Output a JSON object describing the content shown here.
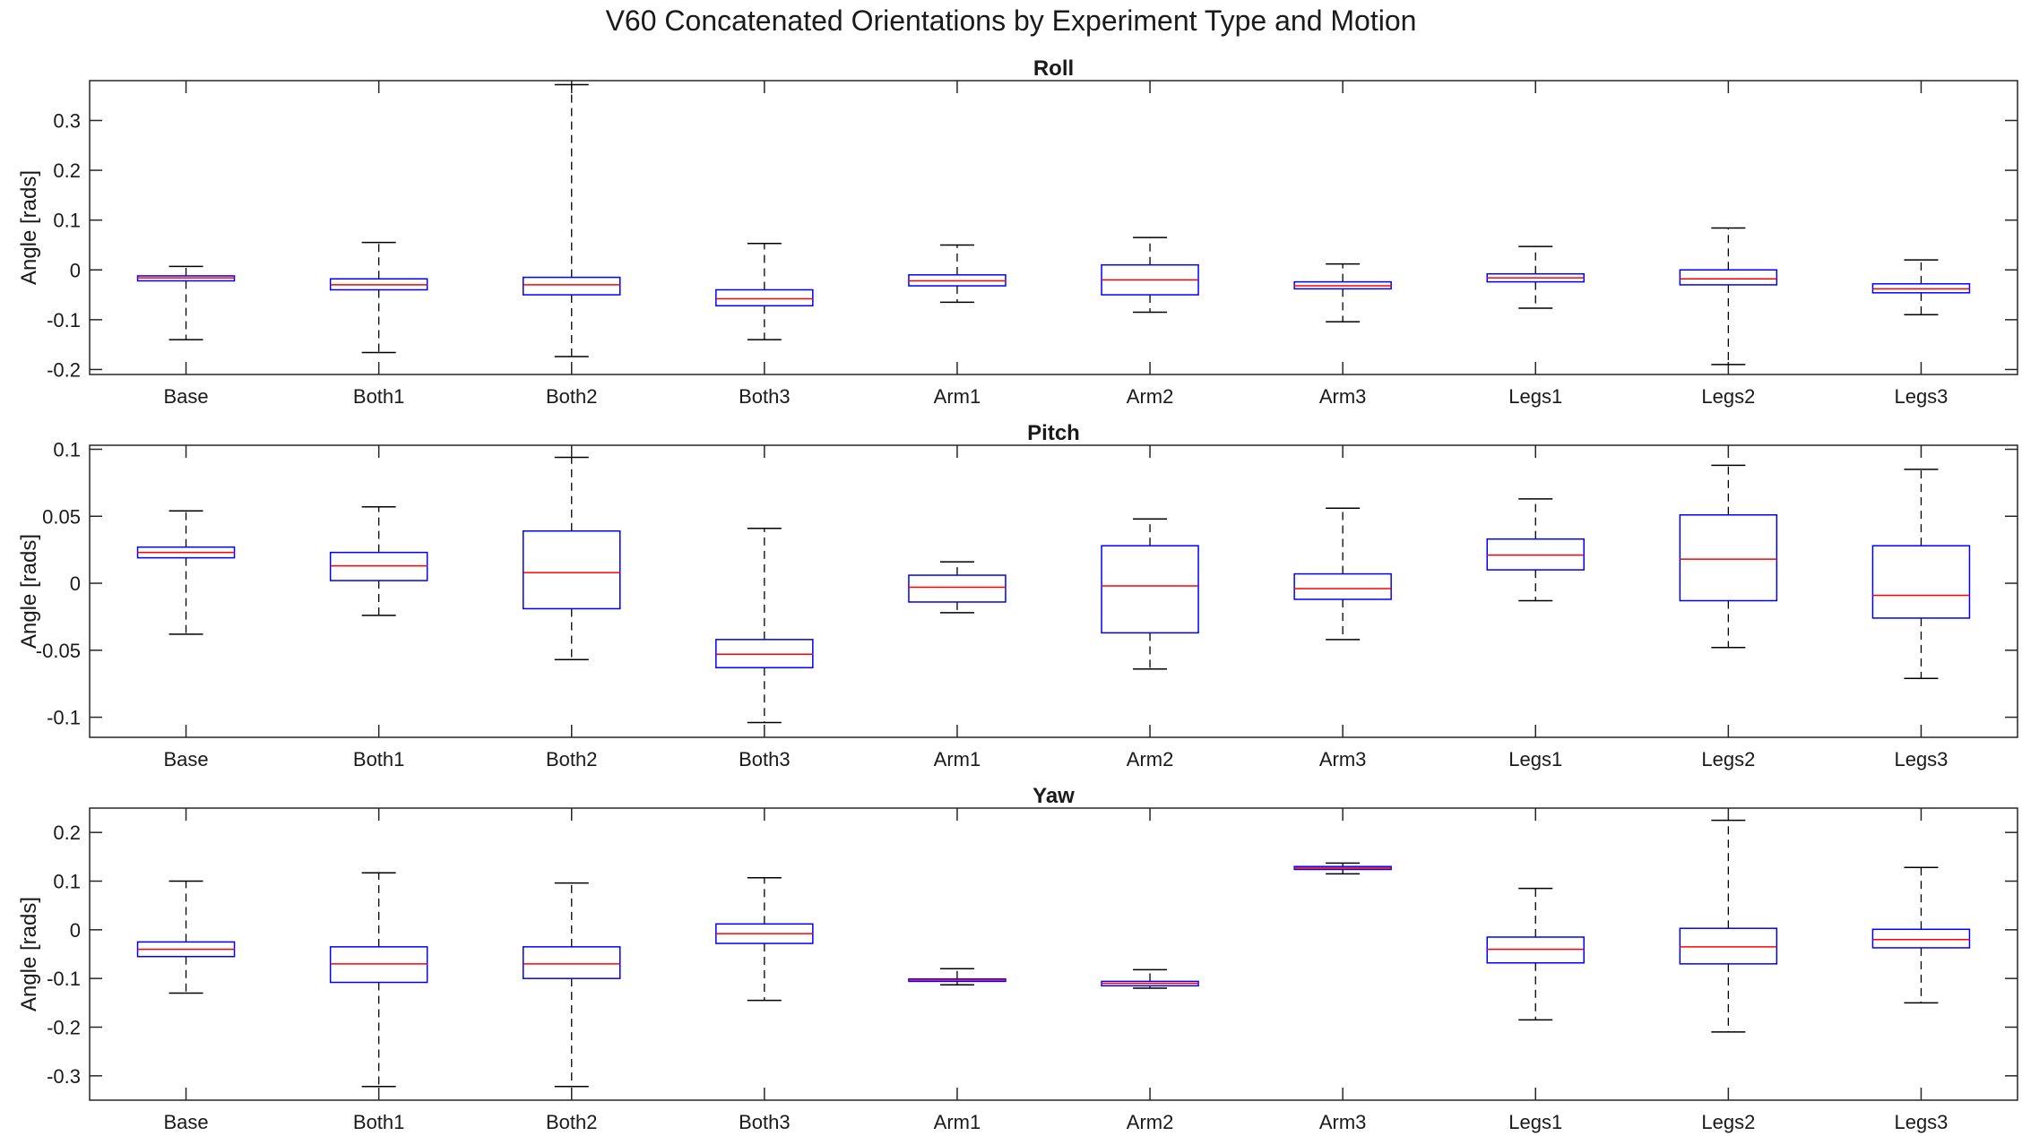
{
  "chart_data": {
    "type": "boxplot",
    "title": "V60 Concatenated Orientations by Experiment Type and Motion",
    "categories": [
      "Base",
      "Both1",
      "Both2",
      "Both3",
      "Arm1",
      "Arm2",
      "Arm3",
      "Legs1",
      "Legs2",
      "Legs3"
    ],
    "colors": {
      "box": "#0000ff",
      "median": "#ff0000",
      "whisker": "#000000",
      "axes": "#262626"
    },
    "grid": false,
    "panels": [
      {
        "title": "Roll",
        "ylabel": "Angle [rads]",
        "ylim": [
          -0.21,
          0.38
        ],
        "yticks": [
          -0.2,
          -0.1,
          0,
          0.1,
          0.2,
          0.3
        ],
        "ytick_labels": [
          "-0.2",
          "-0.1",
          "0",
          "0.1",
          "0.2",
          "0.3"
        ],
        "boxes": [
          {
            "min": -0.14,
            "q1": -0.022,
            "median": -0.016,
            "q3": -0.012,
            "max": 0.007
          },
          {
            "min": -0.166,
            "q1": -0.04,
            "median": -0.03,
            "q3": -0.018,
            "max": 0.055
          },
          {
            "min": -0.174,
            "q1": -0.05,
            "median": -0.03,
            "q3": -0.015,
            "max": 0.372
          },
          {
            "min": -0.14,
            "q1": -0.072,
            "median": -0.058,
            "q3": -0.04,
            "max": 0.053
          },
          {
            "min": -0.065,
            "q1": -0.032,
            "median": -0.022,
            "q3": -0.01,
            "max": 0.05
          },
          {
            "min": -0.085,
            "q1": -0.05,
            "median": -0.02,
            "q3": 0.01,
            "max": 0.065
          },
          {
            "min": -0.104,
            "q1": -0.038,
            "median": -0.032,
            "q3": -0.024,
            "max": 0.012
          },
          {
            "min": -0.077,
            "q1": -0.024,
            "median": -0.016,
            "q3": -0.008,
            "max": 0.047
          },
          {
            "min": -0.19,
            "q1": -0.03,
            "median": -0.018,
            "q3": 0.0,
            "max": 0.084
          },
          {
            "min": -0.09,
            "q1": -0.046,
            "median": -0.038,
            "q3": -0.028,
            "max": 0.02
          }
        ]
      },
      {
        "title": "Pitch",
        "ylabel": "Angle [rads]",
        "ylim": [
          -0.115,
          0.103
        ],
        "yticks": [
          -0.1,
          -0.05,
          0,
          0.05,
          0.1
        ],
        "ytick_labels": [
          "-0.1",
          "-0.05",
          "0",
          "0.05",
          "0.1"
        ],
        "boxes": [
          {
            "min": -0.038,
            "q1": 0.019,
            "median": 0.023,
            "q3": 0.027,
            "max": 0.054
          },
          {
            "min": -0.024,
            "q1": 0.002,
            "median": 0.013,
            "q3": 0.023,
            "max": 0.057
          },
          {
            "min": -0.057,
            "q1": -0.019,
            "median": 0.008,
            "q3": 0.039,
            "max": 0.094
          },
          {
            "min": -0.104,
            "q1": -0.063,
            "median": -0.053,
            "q3": -0.042,
            "max": 0.041
          },
          {
            "min": -0.022,
            "q1": -0.014,
            "median": -0.003,
            "q3": 0.006,
            "max": 0.016
          },
          {
            "min": -0.064,
            "q1": -0.037,
            "median": -0.002,
            "q3": 0.028,
            "max": 0.048
          },
          {
            "min": -0.042,
            "q1": -0.012,
            "median": -0.004,
            "q3": 0.007,
            "max": 0.056
          },
          {
            "min": -0.013,
            "q1": 0.01,
            "median": 0.021,
            "q3": 0.033,
            "max": 0.063
          },
          {
            "min": -0.048,
            "q1": -0.013,
            "median": 0.018,
            "q3": 0.051,
            "max": 0.088
          },
          {
            "min": -0.071,
            "q1": -0.026,
            "median": -0.009,
            "q3": 0.028,
            "max": 0.085
          }
        ]
      },
      {
        "title": "Yaw",
        "ylabel": "Angle [rads]",
        "ylim": [
          -0.35,
          0.25
        ],
        "yticks": [
          -0.3,
          -0.2,
          -0.1,
          0,
          0.1,
          0.2
        ],
        "ytick_labels": [
          "-0.3",
          "-0.2",
          "-0.1",
          "0",
          "0.1",
          "0.2"
        ],
        "boxes": [
          {
            "min": -0.13,
            "q1": -0.055,
            "median": -0.04,
            "q3": -0.025,
            "max": 0.1
          },
          {
            "min": -0.322,
            "q1": -0.108,
            "median": -0.07,
            "q3": -0.035,
            "max": 0.117
          },
          {
            "min": -0.322,
            "q1": -0.1,
            "median": -0.07,
            "q3": -0.035,
            "max": 0.096
          },
          {
            "min": -0.145,
            "q1": -0.028,
            "median": -0.008,
            "q3": 0.012,
            "max": 0.107
          },
          {
            "min": -0.113,
            "q1": -0.106,
            "median": -0.103,
            "q3": -0.101,
            "max": -0.08
          },
          {
            "min": -0.12,
            "q1": -0.115,
            "median": -0.11,
            "q3": -0.106,
            "max": -0.082
          },
          {
            "min": 0.115,
            "q1": 0.124,
            "median": 0.127,
            "q3": 0.13,
            "max": 0.137
          },
          {
            "min": -0.185,
            "q1": -0.068,
            "median": -0.04,
            "q3": -0.015,
            "max": 0.085
          },
          {
            "min": -0.21,
            "q1": -0.07,
            "median": -0.035,
            "q3": 0.003,
            "max": 0.225
          },
          {
            "min": -0.15,
            "q1": -0.037,
            "median": -0.02,
            "q3": 0.001,
            "max": 0.128
          }
        ]
      }
    ]
  }
}
